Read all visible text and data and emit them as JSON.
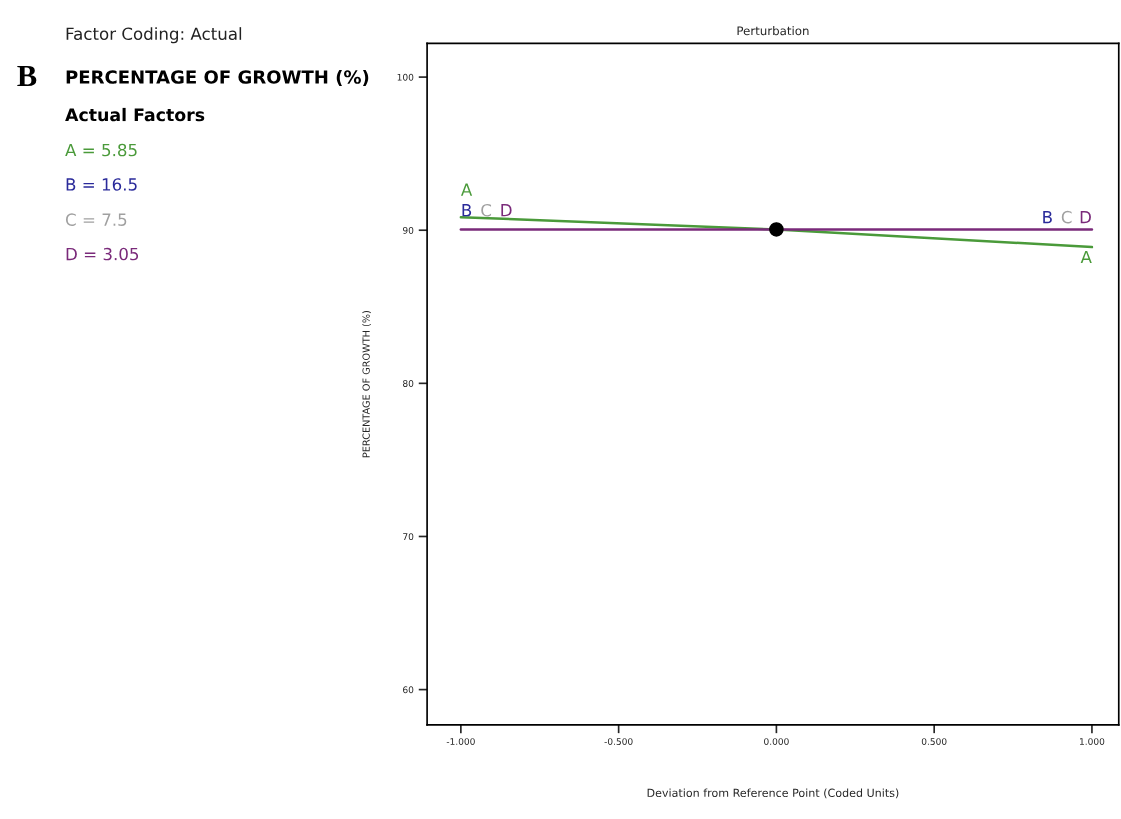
{
  "chart_data": {
    "type": "line",
    "title": "Perturbation",
    "xlabel": "Deviation from Reference Point (Coded Units)",
    "ylabel": "PERCENTAGE OF GROWTH (%)",
    "annotations": [
      "Factor Coding: Actual",
      "B",
      "PERCENTAGE OF GROWTH (%)",
      "Actual Factors",
      "A = 5.85",
      "B = 16.5",
      "C = 7.5",
      "D = 3.05"
    ],
    "series": [
      {
        "name": "A",
        "color": "#4a9a3a",
        "x": [
          -1,
          0,
          1
        ],
        "values": [
          90.85,
          90.05,
          88.9
        ]
      },
      {
        "name": "B",
        "color": "#2a2a9a",
        "values": [
          null,
          null,
          null
        ]
      },
      {
        "name": "C",
        "color": "#a0a0a0",
        "values": [
          null,
          null,
          null
        ]
      },
      {
        "name": "D",
        "color": "#7a2a7a",
        "x": [
          -1,
          0,
          1
        ],
        "values": [
          90.05,
          90.05,
          90.05
        ]
      },
      {
        "type": "scatter",
        "color": "#000000",
        "marker": "circle",
        "x": [
          0
        ],
        "values": [
          90.05
        ]
      }
    ],
    "xlim": [
      -1.107,
      1.085
    ],
    "ylim": [
      57.7,
      102.2
    ],
    "xticks": [
      {
        "value": -1,
        "label": "-1.000"
      },
      {
        "value": -0.5,
        "label": "-0.500"
      },
      {
        "value": 0,
        "label": "0.000"
      },
      {
        "value": 0.5,
        "label": "0.500"
      },
      {
        "value": 1,
        "label": "1.000"
      }
    ],
    "yticks": [
      60,
      70,
      80,
      90,
      100
    ],
    "grid": false,
    "legend": false,
    "marker": "none"
  }
}
